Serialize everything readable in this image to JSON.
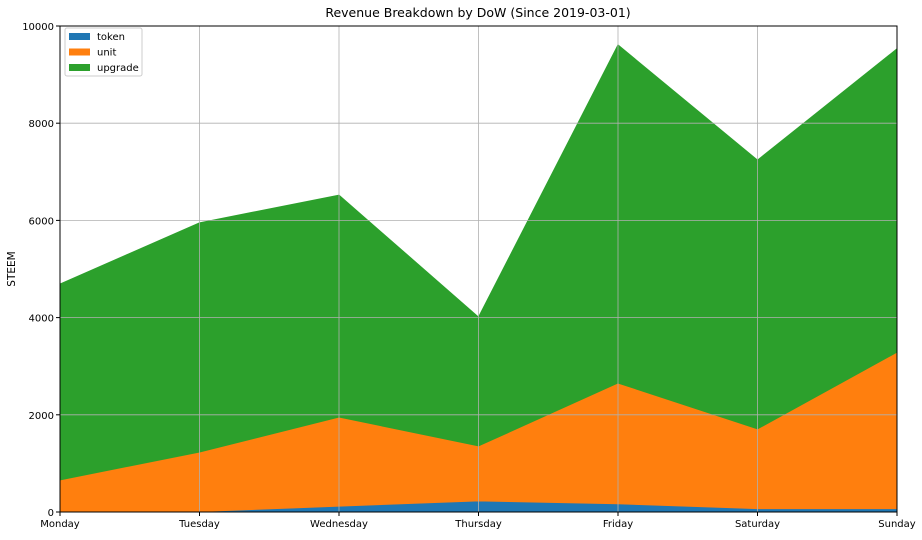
{
  "chart_data": {
    "type": "area",
    "stacked": true,
    "title": "Revenue Breakdown by DoW (Since 2019-03-01)",
    "xlabel": "",
    "ylabel": "STEEM",
    "categories": [
      "Monday",
      "Tuesday",
      "Wednesday",
      "Thursday",
      "Friday",
      "Saturday",
      "Sunday"
    ],
    "ylim": [
      0,
      10000
    ],
    "yticks": [
      0,
      2000,
      4000,
      6000,
      8000,
      10000
    ],
    "grid": true,
    "legend_position": "top-left",
    "series": [
      {
        "name": "token",
        "color": "#1f77b4",
        "values": [
          20,
          10,
          120,
          230,
          170,
          70,
          70
        ]
      },
      {
        "name": "unit",
        "color": "#ff7f0e",
        "values": [
          640,
          1225,
          1835,
          1130,
          2485,
          1640,
          3220
        ]
      },
      {
        "name": "upgrade",
        "color": "#2ca02c",
        "values": [
          4030,
          4715,
          4565,
          2650,
          6955,
          5530,
          6240
        ]
      }
    ]
  }
}
